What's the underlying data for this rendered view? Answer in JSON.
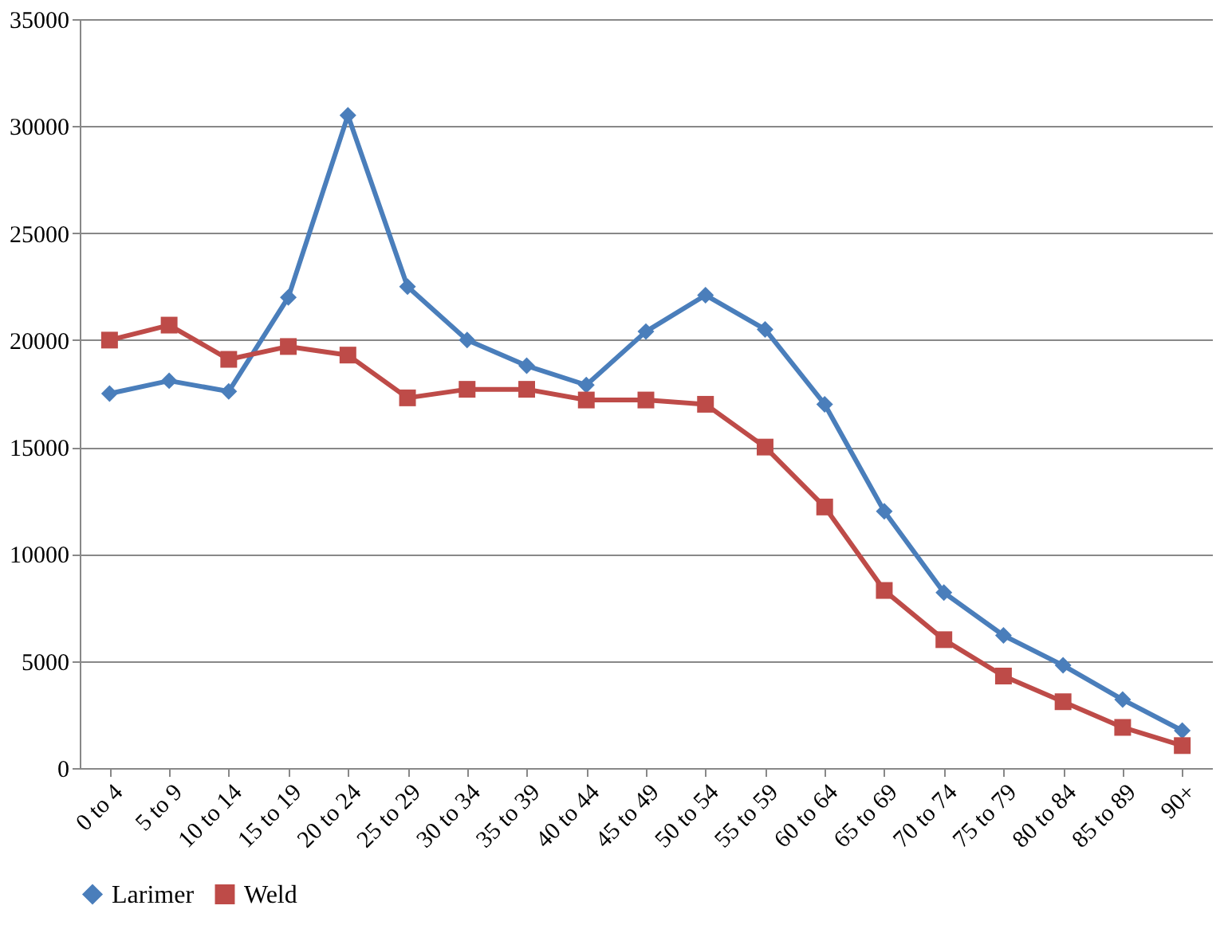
{
  "chart_data": {
    "type": "line",
    "categories": [
      "0 to 4",
      "5 to 9",
      "10 to 14",
      "15 to 19",
      "20 to 24",
      "25 to 29",
      "30 to 34",
      "35 to 39",
      "40 to 44",
      "45 to 49",
      "50 to 54",
      "55 to 59",
      "60 to 64",
      "65 to 69",
      "70 to 74",
      "75 to 79",
      "80 to 84",
      "85 to 89",
      "90+"
    ],
    "series": [
      {
        "name": "Larimer",
        "color": "#4a7ebb",
        "marker": "diamond",
        "values": [
          17500,
          18100,
          17600,
          22000,
          30500,
          22500,
          20000,
          18800,
          17900,
          20400,
          22100,
          20500,
          17000,
          12000,
          8200,
          6200,
          4800,
          3200,
          1750
        ]
      },
      {
        "name": "Weld",
        "color": "#be4b48",
        "marker": "square",
        "values": [
          20000,
          20700,
          19100,
          19700,
          19300,
          17300,
          17700,
          17700,
          17200,
          17200,
          17000,
          15000,
          12200,
          8300,
          6000,
          4300,
          3100,
          1900,
          1050
        ]
      }
    ],
    "ylim": [
      0,
      35000
    ],
    "yticks": [
      0,
      5000,
      10000,
      15000,
      20000,
      25000,
      30000,
      35000
    ],
    "grid": "y",
    "legend": "bottom",
    "line_style": "solid"
  }
}
